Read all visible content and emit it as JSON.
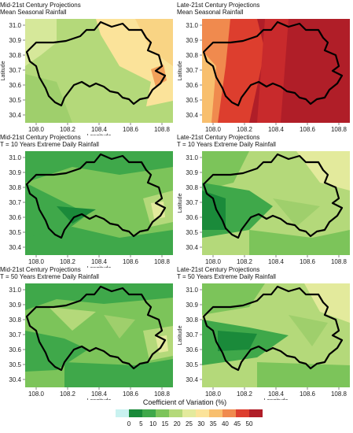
{
  "panels": [
    {
      "title_line1": "Mid-21st Century Projections",
      "title_line2": "Mean Seasonal Rainfall",
      "show_xlabel": true,
      "show_ylabel": true,
      "variant": "mid_mean"
    },
    {
      "title_line1": "Late-21st Century Projections",
      "title_line2": "Mean Seasonal Rainfall",
      "show_xlabel": false,
      "show_ylabel": true,
      "variant": "late_mean"
    },
    {
      "title_line1": "Mid-21st Century Projections",
      "title_line2": "T = 10 Years Extreme Daily Rainfall",
      "show_xlabel": true,
      "show_ylabel": false,
      "variant": "mid_t10"
    },
    {
      "title_line1": "Late-21st Century Projections",
      "title_line2": "T = 10 Years Extreme Daily Rainfall",
      "show_xlabel": false,
      "show_ylabel": true,
      "variant": "late_t10"
    },
    {
      "title_line1": "Mid-21st Century Projections",
      "title_line2": "T = 50 Years Extreme Daily Rainfall",
      "show_xlabel": true,
      "show_ylabel": false,
      "variant": "mid_t50"
    },
    {
      "title_line1": "Late-21st Century Projections",
      "title_line2": "T = 50 Years Extreme Daily Rainfall",
      "show_xlabel": true,
      "show_ylabel": true,
      "variant": "late_t50"
    }
  ],
  "axes": {
    "xlabel": "Longitude",
    "ylabel": "Latitude",
    "xticks": [
      "108.0",
      "108.2",
      "108.4",
      "108.6",
      "108.8"
    ],
    "yticks": [
      "31.0",
      "30.9",
      "30.8",
      "30.7",
      "30.6",
      "30.5",
      "30.4"
    ]
  },
  "colorbar": {
    "title": "Coefficient of Variation (%)",
    "ticks": [
      "0",
      "5",
      "10",
      "15",
      "20",
      "25",
      "30",
      "35",
      "40",
      "45",
      "50"
    ],
    "colors": [
      "#c9f2f0",
      "#1a8a3a",
      "#3fa84a",
      "#7cc45a",
      "#b4d97a",
      "#e3ea9c",
      "#fbe39a",
      "#f8bf6e",
      "#f08a4e",
      "#dd3e2e",
      "#b01e28"
    ]
  }
}
